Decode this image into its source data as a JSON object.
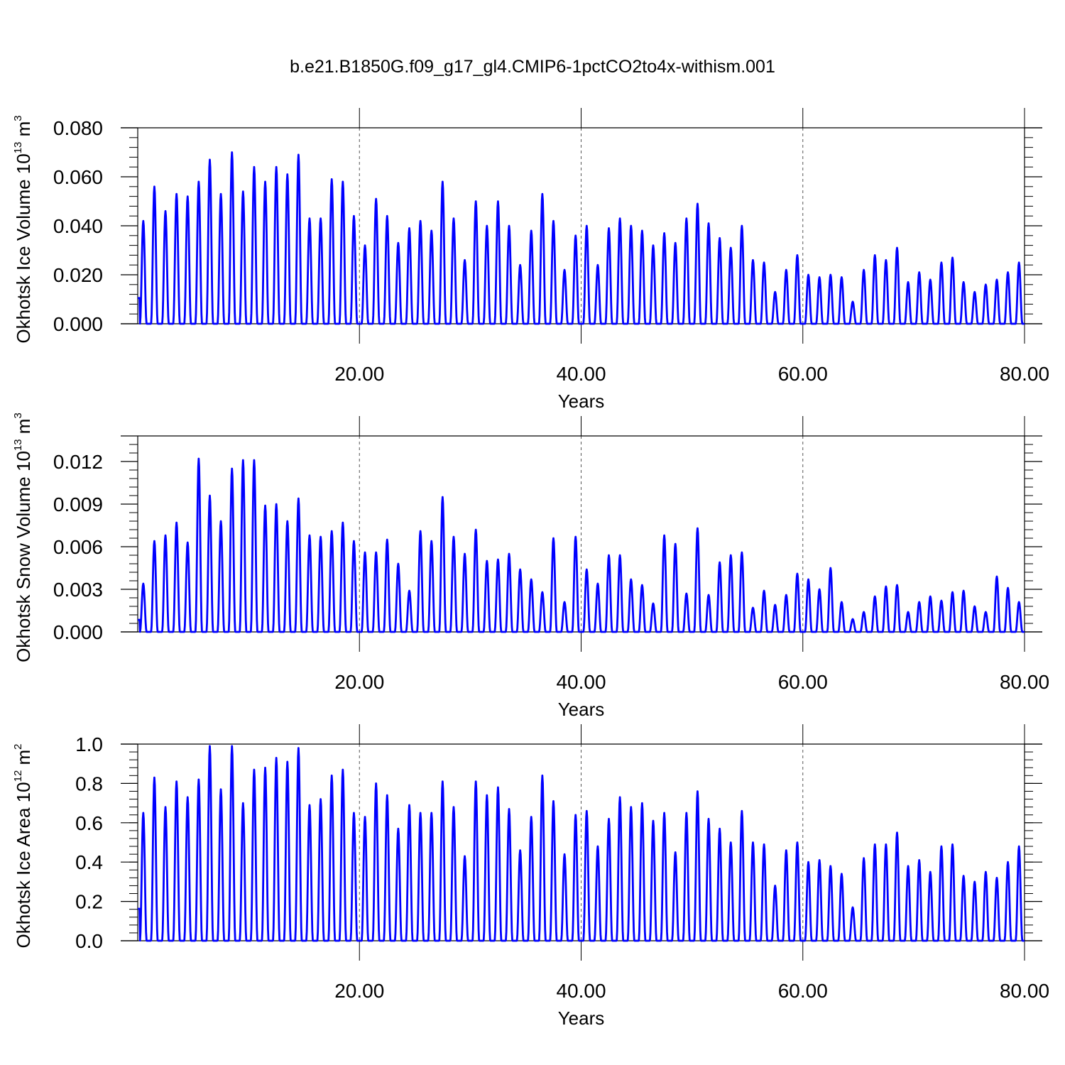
{
  "figure": {
    "title": "b.e21.B1850G.f09_g17_gl4.CMIP6-1pctCO2to4x-withism.001",
    "series_color": "#0000ff",
    "gridline_color": "#555555"
  },
  "chart_data": [
    {
      "type": "line",
      "ylabel": {
        "main": "Okhotsk Ice Volume 10",
        "exp": "13",
        "unit": " m",
        "unit_exp": "3"
      },
      "xlabel": "Years",
      "xlim": [
        0,
        80
      ],
      "ylim": [
        0,
        0.08
      ],
      "yticks": [
        "0.000",
        "0.020",
        "0.040",
        "0.060",
        "0.080"
      ],
      "ytick_values": [
        0,
        0.02,
        0.04,
        0.06,
        0.08
      ],
      "xticks": [
        "20.00",
        "40.00",
        "60.00",
        "80.00"
      ],
      "xtick_values": [
        20,
        40,
        60,
        80
      ],
      "grid": "dashed vertical at 20, 40, 60",
      "series": [
        {
          "peaks": [
            0.042,
            0.056,
            0.046,
            0.053,
            0.052,
            0.058,
            0.067,
            0.053,
            0.07,
            0.054,
            0.064,
            0.058,
            0.064,
            0.061,
            0.069,
            0.043,
            0.043,
            0.059,
            0.058,
            0.044,
            0.032,
            0.051,
            0.044,
            0.033,
            0.039,
            0.042,
            0.038,
            0.058,
            0.043,
            0.026,
            0.05,
            0.04,
            0.05,
            0.04,
            0.024,
            0.038,
            0.053,
            0.042,
            0.022,
            0.036,
            0.04,
            0.024,
            0.039,
            0.043,
            0.04,
            0.038,
            0.032,
            0.037,
            0.033,
            0.043,
            0.049,
            0.041,
            0.035,
            0.031,
            0.04,
            0.026,
            0.025,
            0.013,
            0.022,
            0.028,
            0.02,
            0.019,
            0.02,
            0.019,
            0.009,
            0.022,
            0.028,
            0.026,
            0.031,
            0.017,
            0.021,
            0.018,
            0.025,
            0.027,
            0.017,
            0.013,
            0.016,
            0.018,
            0.021,
            0.025
          ]
        }
      ]
    },
    {
      "type": "line",
      "ylabel": {
        "main": "Okhotsk Snow Volume 10",
        "exp": "13",
        "unit": " m",
        "unit_exp": "3"
      },
      "xlabel": "Years",
      "xlim": [
        0,
        80
      ],
      "ylim": [
        0,
        0.0138
      ],
      "yticks": [
        "0.000",
        "0.003",
        "0.006",
        "0.009",
        "0.012"
      ],
      "ytick_values": [
        0,
        0.003,
        0.006,
        0.009,
        0.012
      ],
      "xticks": [
        "20.00",
        "40.00",
        "60.00",
        "80.00"
      ],
      "xtick_values": [
        20,
        40,
        60,
        80
      ],
      "grid": "dashed vertical at 20, 40, 60",
      "series": [
        {
          "peaks": [
            0.0034,
            0.0064,
            0.0068,
            0.0077,
            0.0063,
            0.0122,
            0.0096,
            0.0078,
            0.0115,
            0.0121,
            0.0121,
            0.0089,
            0.009,
            0.0078,
            0.0094,
            0.0068,
            0.0067,
            0.0071,
            0.0077,
            0.0064,
            0.0056,
            0.0056,
            0.0065,
            0.0048,
            0.0029,
            0.0071,
            0.0064,
            0.0095,
            0.0067,
            0.0055,
            0.0072,
            0.005,
            0.0051,
            0.0055,
            0.0044,
            0.0037,
            0.0028,
            0.0066,
            0.0021,
            0.0067,
            0.0044,
            0.0034,
            0.0054,
            0.0054,
            0.0037,
            0.0033,
            0.002,
            0.0068,
            0.0062,
            0.0027,
            0.0073,
            0.0026,
            0.0049,
            0.0054,
            0.0056,
            0.0017,
            0.0029,
            0.0019,
            0.0026,
            0.0041,
            0.0037,
            0.003,
            0.0045,
            0.0021,
            0.0009,
            0.0014,
            0.0025,
            0.0032,
            0.0033,
            0.0014,
            0.0021,
            0.0025,
            0.0022,
            0.0028,
            0.0029,
            0.0018,
            0.0014,
            0.0039,
            0.0031,
            0.0021
          ]
        }
      ]
    },
    {
      "type": "line",
      "ylabel": {
        "main": "Okhotsk Ice Area 10",
        "exp": "12",
        "unit": " m",
        "unit_exp": "2"
      },
      "xlabel": "Years",
      "xlim": [
        0,
        80
      ],
      "ylim": [
        0,
        1.0
      ],
      "yticks": [
        "0.0",
        "0.2",
        "0.4",
        "0.6",
        "0.8",
        "1.0"
      ],
      "ytick_values": [
        0,
        0.2,
        0.4,
        0.6,
        0.8,
        1.0
      ],
      "xticks": [
        "20.00",
        "40.00",
        "60.00",
        "80.00"
      ],
      "xtick_values": [
        20,
        40,
        60,
        80
      ],
      "grid": "dashed vertical at 20, 40, 60",
      "series": [
        {
          "peaks": [
            0.65,
            0.83,
            0.68,
            0.81,
            0.73,
            0.82,
            0.99,
            0.77,
            0.99,
            0.7,
            0.87,
            0.88,
            0.93,
            0.91,
            0.98,
            0.69,
            0.72,
            0.84,
            0.87,
            0.65,
            0.63,
            0.8,
            0.74,
            0.57,
            0.69,
            0.65,
            0.65,
            0.81,
            0.68,
            0.43,
            0.81,
            0.74,
            0.78,
            0.67,
            0.46,
            0.63,
            0.84,
            0.71,
            0.44,
            0.64,
            0.66,
            0.48,
            0.62,
            0.73,
            0.68,
            0.7,
            0.61,
            0.65,
            0.45,
            0.65,
            0.76,
            0.62,
            0.57,
            0.5,
            0.66,
            0.5,
            0.49,
            0.28,
            0.46,
            0.5,
            0.4,
            0.41,
            0.38,
            0.34,
            0.17,
            0.42,
            0.49,
            0.49,
            0.55,
            0.38,
            0.41,
            0.35,
            0.48,
            0.49,
            0.33,
            0.3,
            0.35,
            0.32,
            0.4,
            0.48
          ]
        }
      ]
    }
  ]
}
